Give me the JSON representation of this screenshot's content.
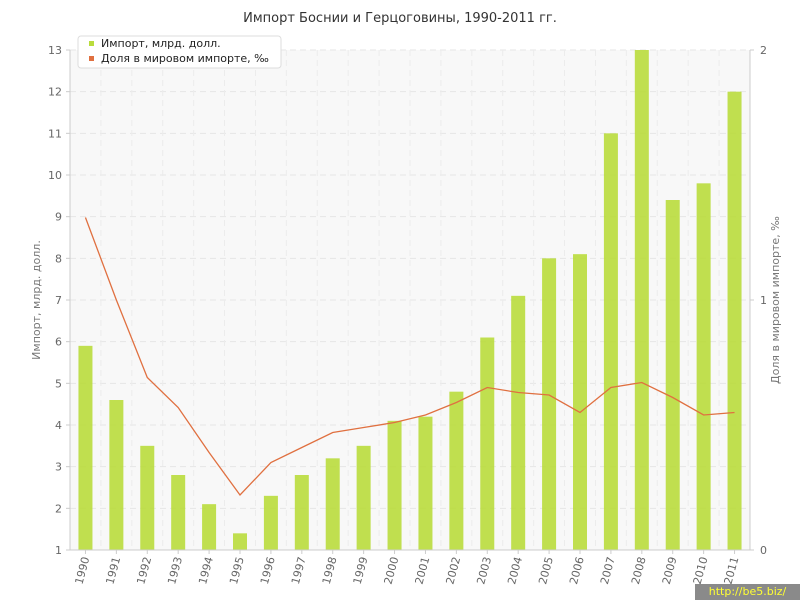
{
  "chart_data": {
    "type": "bar",
    "title": "Импорт Боснии и Герцоговины, 1990-2011 гг.",
    "ylabel": "Импорт, млрд. долл.",
    "y2label": "Доля в мировом импорте, ‰",
    "ylim": [
      1,
      13
    ],
    "y2lim": [
      0,
      2
    ],
    "grid": true,
    "legend_position": "top-left",
    "categories": [
      "1990",
      "1991",
      "1992",
      "1993",
      "1994",
      "1995",
      "1996",
      "1997",
      "1998",
      "1999",
      "2000",
      "2001",
      "2002",
      "2003",
      "2004",
      "2005",
      "2006",
      "2007",
      "2008",
      "2009",
      "2010",
      "2011"
    ],
    "yticks": [
      "1",
      "2",
      "3",
      "4",
      "5",
      "6",
      "7",
      "8",
      "9",
      "10",
      "11",
      "12",
      "13"
    ],
    "y2ticks": [
      "0",
      "1",
      "2"
    ],
    "series": [
      {
        "name": "Импорт, млрд. долл.",
        "type": "bar",
        "axis": "left",
        "color": "#b9dc3c",
        "values": [
          5.9,
          4.6,
          3.5,
          2.8,
          2.1,
          1.4,
          2.3,
          2.8,
          3.2,
          3.5,
          4.1,
          4.2,
          4.8,
          6.1,
          7.1,
          8.0,
          8.1,
          11.0,
          13.0,
          9.4,
          9.8,
          12.0
        ]
      },
      {
        "name": "Доля в мировом импорте, ‰",
        "type": "line",
        "axis": "right",
        "color": "#e07040",
        "values": [
          1.33,
          1.0,
          0.69,
          0.57,
          0.39,
          0.22,
          0.35,
          0.41,
          0.47,
          0.49,
          0.51,
          0.54,
          0.59,
          0.65,
          0.63,
          0.62,
          0.55,
          0.65,
          0.67,
          0.61,
          0.54,
          0.55
        ]
      }
    ]
  },
  "watermark": "http://be5.biz/"
}
